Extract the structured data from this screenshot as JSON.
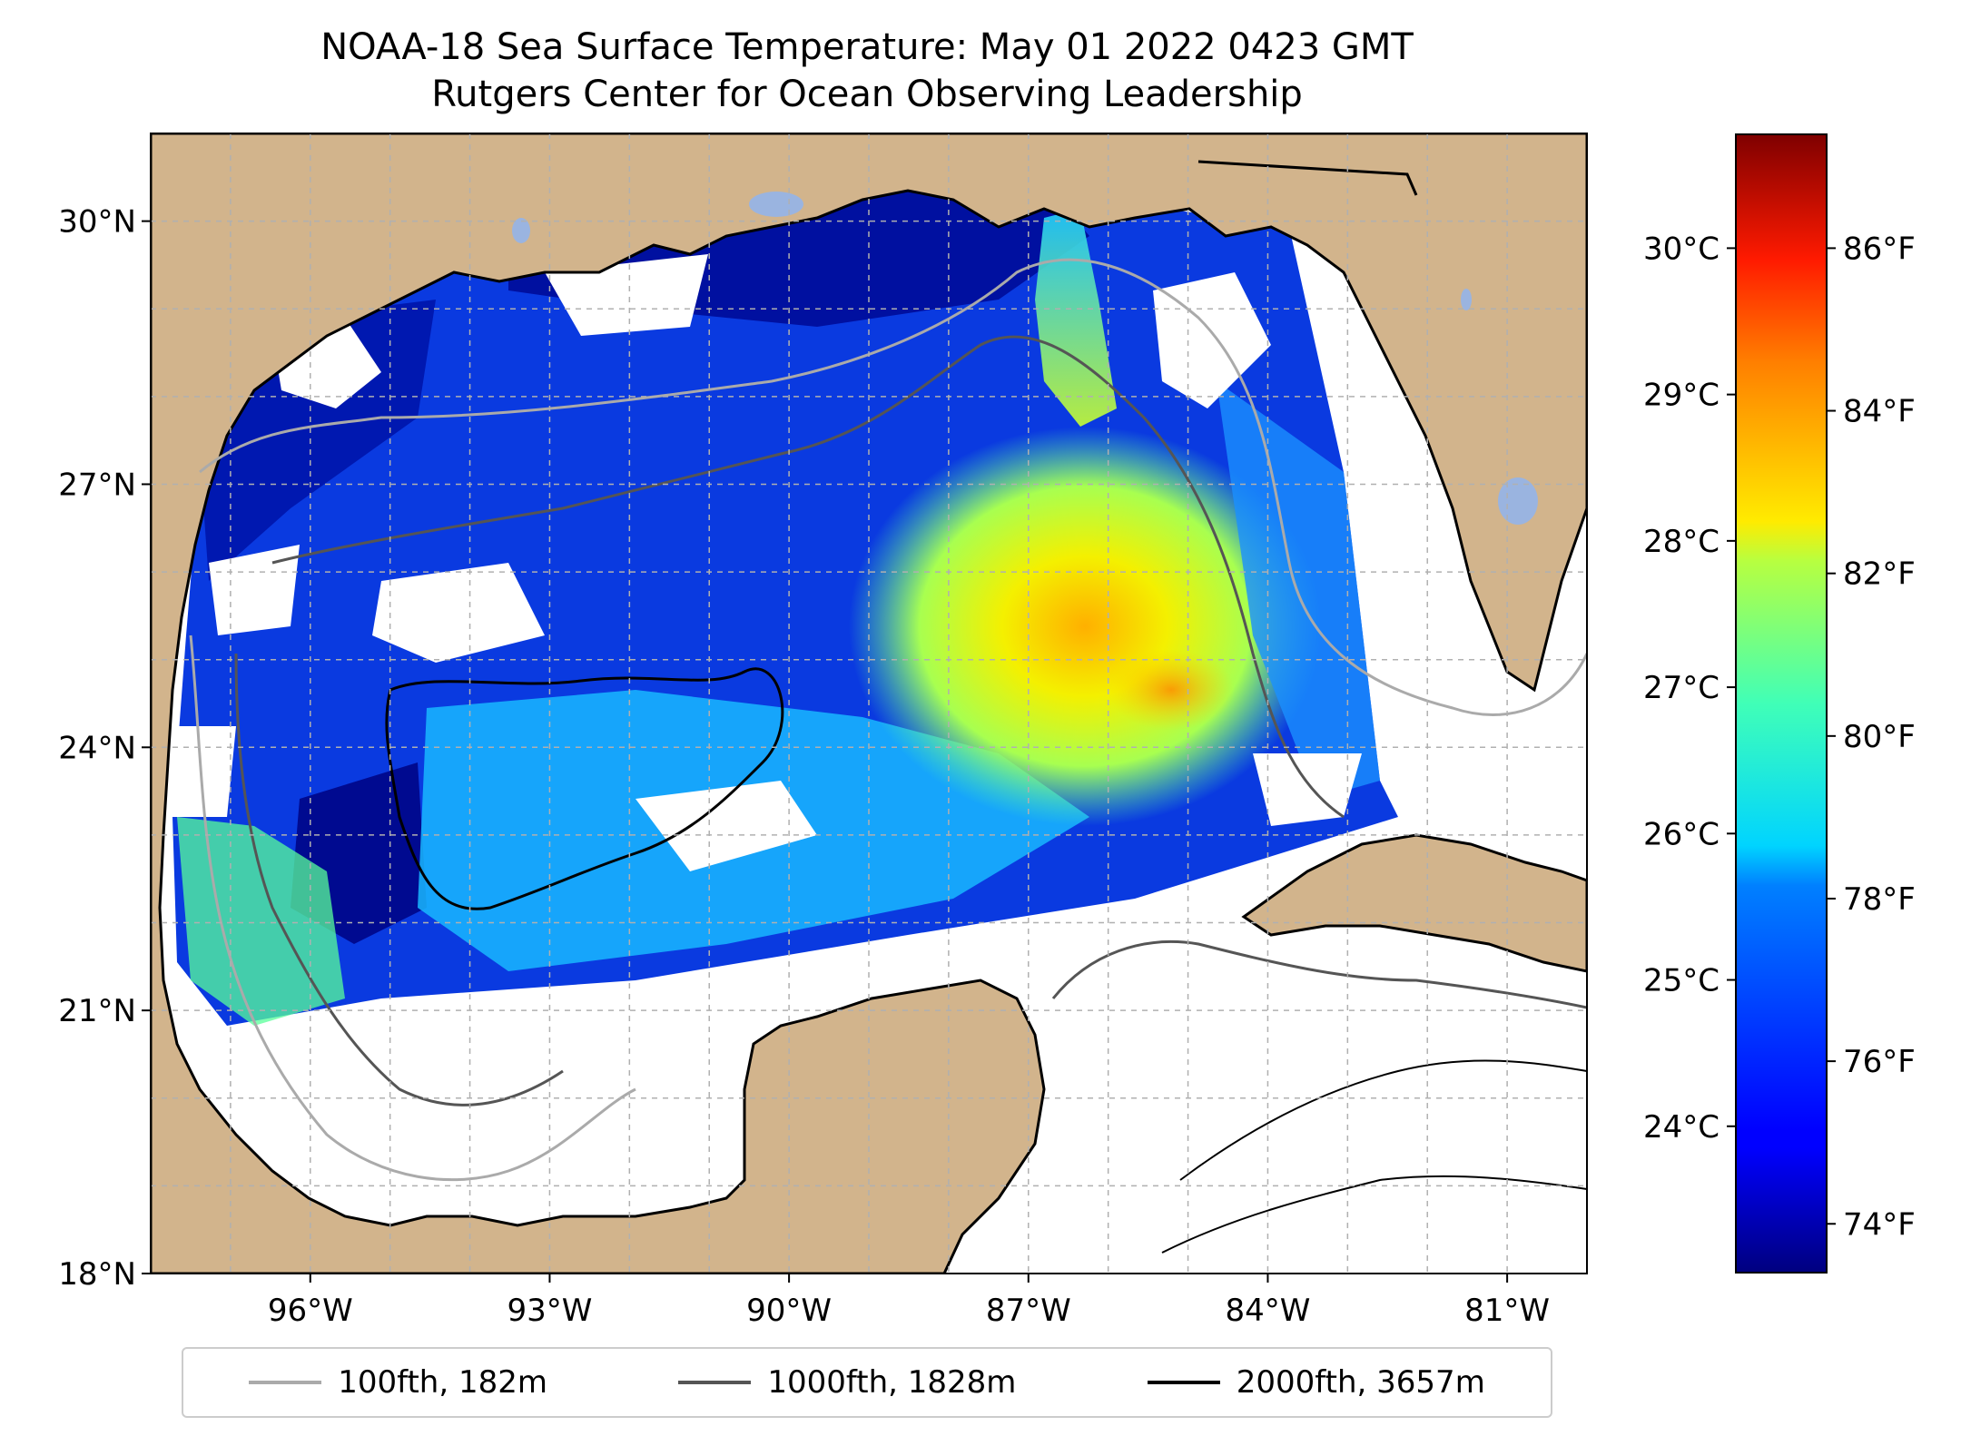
{
  "title": {
    "line1": "NOAA-18 Sea Surface Temperature: May 01 2022 0423 GMT",
    "line2": "Rutgers Center for Ocean Observing Leadership"
  },
  "map": {
    "lon_range": [
      -98.0,
      -80.0
    ],
    "lat_range": [
      18.0,
      31.0
    ],
    "lat_ticks": [
      {
        "value": 18,
        "label": "18°N"
      },
      {
        "value": 21,
        "label": "21°N"
      },
      {
        "value": 24,
        "label": "24°N"
      },
      {
        "value": 27,
        "label": "27°N"
      },
      {
        "value": 30,
        "label": "30°N"
      }
    ],
    "lon_ticks": [
      {
        "value": -96,
        "label": "96°W"
      },
      {
        "value": -93,
        "label": "93°W"
      },
      {
        "value": -90,
        "label": "90°W"
      },
      {
        "value": -87,
        "label": "87°W"
      },
      {
        "value": -84,
        "label": "84°W"
      },
      {
        "value": -81,
        "label": "81°W"
      }
    ],
    "grid": true,
    "land_color": "#d2b48c",
    "lake_color": "#9ab4e0"
  },
  "colorbar": {
    "colormap": "jet",
    "celsius_ticks": [
      {
        "value": 24,
        "label": "24°C"
      },
      {
        "value": 25,
        "label": "25°C"
      },
      {
        "value": 26,
        "label": "26°C"
      },
      {
        "value": 27,
        "label": "27°C"
      },
      {
        "value": 28,
        "label": "28°C"
      },
      {
        "value": 29,
        "label": "29°C"
      },
      {
        "value": 30,
        "label": "30°C"
      }
    ],
    "fahrenheit_ticks": [
      {
        "value": 74,
        "label": "74°F"
      },
      {
        "value": 76,
        "label": "76°F"
      },
      {
        "value": 78,
        "label": "78°F"
      },
      {
        "value": 80,
        "label": "80°F"
      },
      {
        "value": 82,
        "label": "82°F"
      },
      {
        "value": 84,
        "label": "84°F"
      },
      {
        "value": 86,
        "label": "86°F"
      }
    ],
    "range_f": [
      73.4,
      87.4
    ]
  },
  "legend": {
    "items": [
      {
        "label": "100fth, 182m",
        "color": "#aaaaaa"
      },
      {
        "label": "1000fth, 1828m",
        "color": "#555555"
      },
      {
        "label": "2000fth, 3657m",
        "color": "#000000"
      }
    ]
  }
}
